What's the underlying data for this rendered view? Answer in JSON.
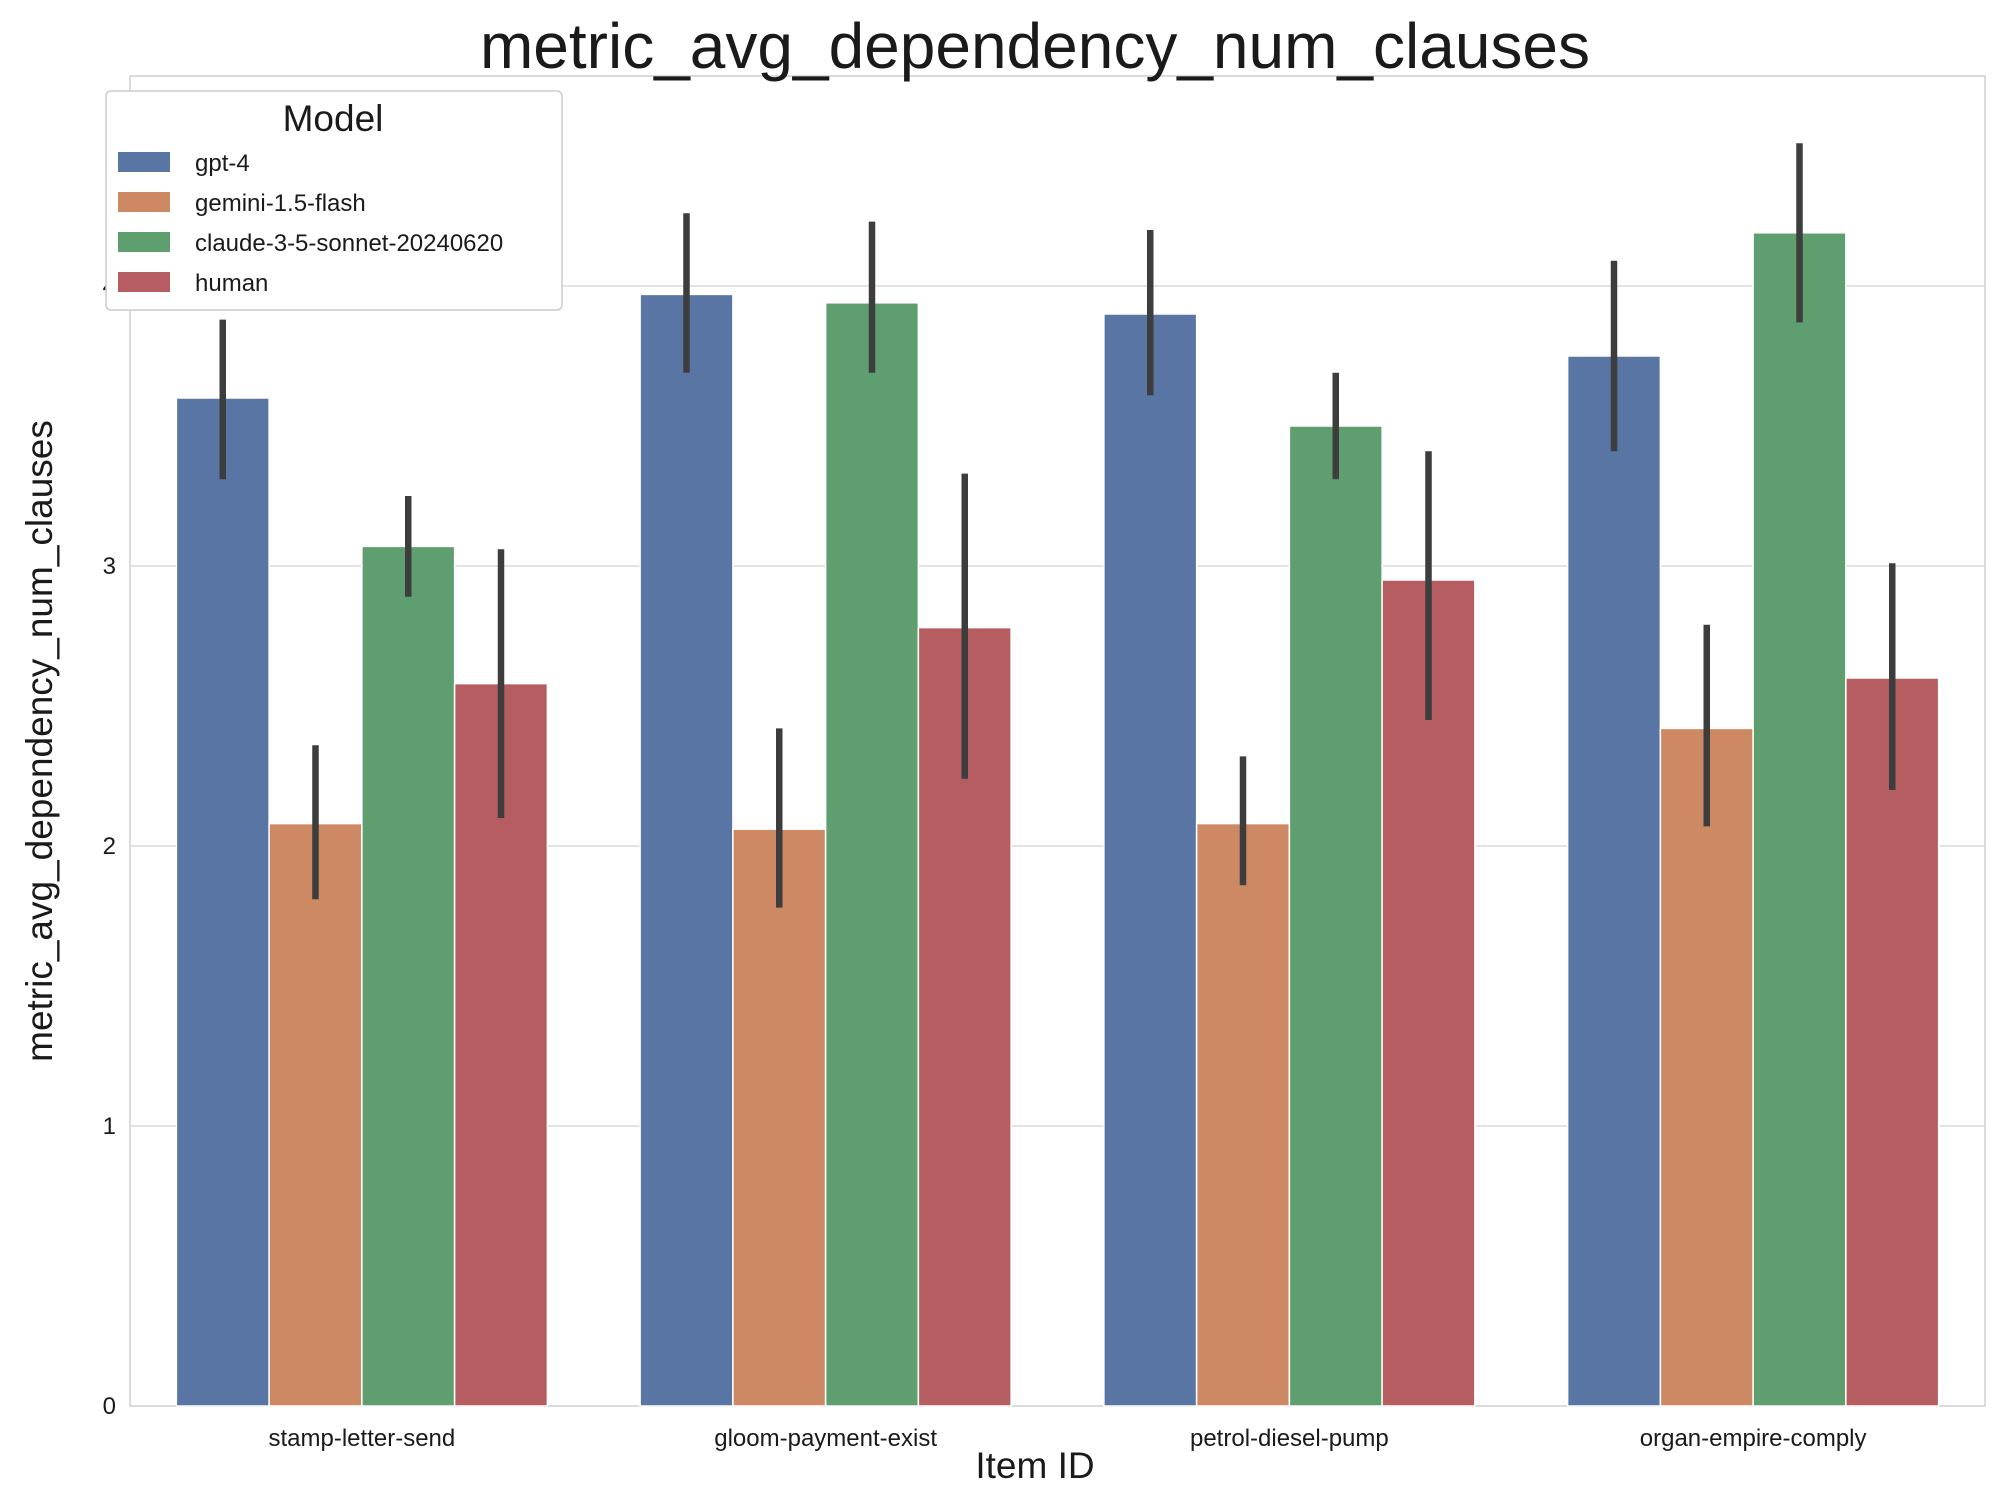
{
  "chart_data": {
    "type": "bar",
    "title": "metric_avg_dependency_num_clauses",
    "xlabel": "Item ID",
    "ylabel": "metric_avg_dependency_num_clauses",
    "ylim": [
      0,
      4.75
    ],
    "yticks": [
      0,
      1,
      2,
      3,
      4
    ],
    "grid": "y",
    "legend": {
      "title": "Model",
      "position": "top-left"
    },
    "categories": [
      "stamp-letter-send",
      "gloom-payment-exist",
      "petrol-diesel-pump",
      "organ-empire-comply"
    ],
    "series": [
      {
        "name": "gpt-4",
        "color": "#5875a4",
        "values": [
          3.6,
          3.97,
          3.9,
          3.75
        ],
        "err_low": [
          3.31,
          3.69,
          3.61,
          3.41
        ],
        "err_high": [
          3.88,
          4.26,
          4.2,
          4.09
        ]
      },
      {
        "name": "gemini-1.5-flash",
        "color": "#cc8963",
        "values": [
          2.08,
          2.06,
          2.08,
          2.42
        ],
        "err_low": [
          1.81,
          1.78,
          1.86,
          2.07
        ],
        "err_high": [
          2.36,
          2.42,
          2.32,
          2.79
        ]
      },
      {
        "name": "claude-3-5-sonnet-20240620",
        "color": "#5f9e6e",
        "values": [
          3.07,
          3.94,
          3.5,
          4.19
        ],
        "err_low": [
          2.89,
          3.69,
          3.31,
          3.87
        ],
        "err_high": [
          3.25,
          4.23,
          3.69,
          4.51
        ]
      },
      {
        "name": "human",
        "color": "#b55d60",
        "values": [
          2.58,
          2.78,
          2.95,
          2.6
        ],
        "err_low": [
          2.1,
          2.24,
          2.45,
          2.2
        ],
        "err_high": [
          3.06,
          3.33,
          3.41,
          3.01
        ]
      }
    ]
  }
}
